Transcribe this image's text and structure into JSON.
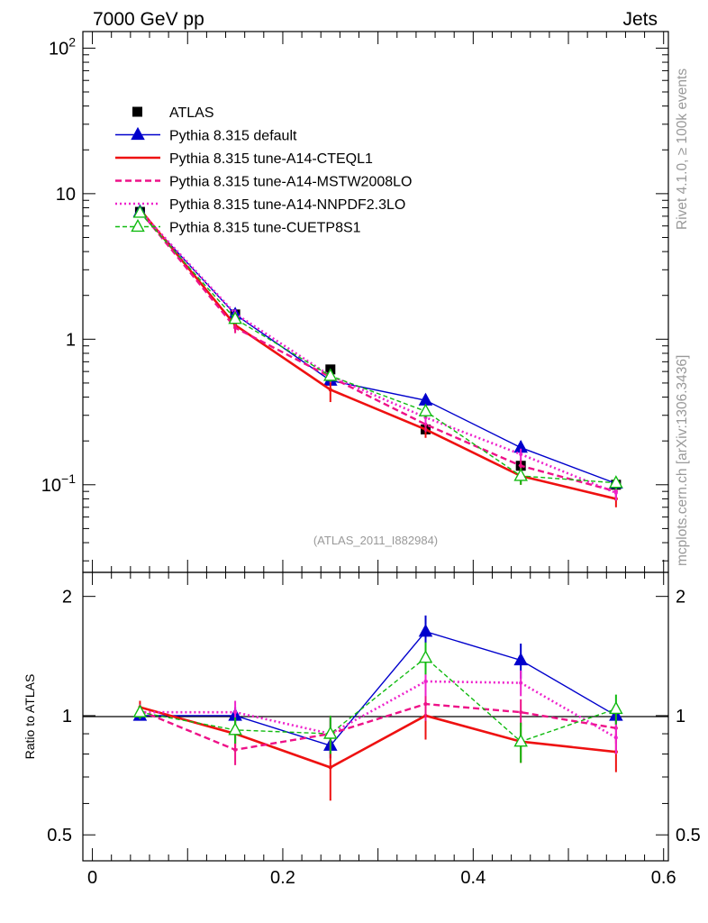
{
  "header": {
    "left": "7000 GeV pp",
    "right": "Jets"
  },
  "side_labels": {
    "rivet": "Rivet 4.1.0, ≥ 100k events",
    "mcplots": "mcplots.cern.ch [arXiv:1306.3436]"
  },
  "colors": {
    "atlas": "#000000",
    "default": "#0000cc",
    "cteql1": "#ee1111",
    "mstw": "#ee1188",
    "nnpdf": "#ee22cc",
    "cuetp": "#11bb11",
    "watermark": "#999999"
  },
  "chart_data": [
    {
      "type": "line",
      "panel": "main",
      "yscale": "log",
      "xlim": [
        -0.01,
        0.605
      ],
      "ylim": [
        0.025,
        130
      ],
      "annotation": "(ATLAS_2011_I882984)",
      "y_ticks": [
        {
          "value": 0.1,
          "base": "10",
          "exp": "−1"
        },
        {
          "value": 1,
          "label": "1"
        },
        {
          "value": 10,
          "label": "10"
        },
        {
          "value": 100,
          "base": "10",
          "exp": "2"
        }
      ],
      "legend_position": "top-left",
      "x": [
        0.05,
        0.15,
        0.25,
        0.35,
        0.45,
        0.55
      ],
      "series": [
        {
          "key": "atlas",
          "name": "ATLAS",
          "style": "data",
          "color": "#000000",
          "values": [
            7.5,
            1.48,
            0.62,
            0.24,
            0.135,
            0.1
          ]
        },
        {
          "key": "default",
          "name": "Pythia 8.315 default",
          "style": "solid-thin",
          "marker": "filled-triangle",
          "color": "#0000cc",
          "values": [
            7.5,
            1.48,
            0.52,
            0.38,
            0.18,
            0.102
          ],
          "errors": [
            0.2,
            0.08,
            0.04,
            0.04,
            0.02,
            0.01
          ]
        },
        {
          "key": "cteql1",
          "name": "Pythia 8.315 tune-A14-CTEQL1",
          "style": "solid-thick",
          "color": "#ee1111",
          "values": [
            7.8,
            1.25,
            0.45,
            0.24,
            0.115,
            0.08
          ],
          "errors": [
            0.3,
            0.1,
            0.08,
            0.03,
            0.015,
            0.01
          ]
        },
        {
          "key": "mstw",
          "name": "Pythia 8.315 tune-A14-MSTW2008LO",
          "style": "dashed",
          "color": "#ee1188",
          "values": [
            7.6,
            1.2,
            0.55,
            0.26,
            0.135,
            0.09
          ],
          "errors": [
            0.3,
            0.1,
            0.05,
            0.03,
            0.015,
            0.01
          ]
        },
        {
          "key": "nnpdf",
          "name": "Pythia 8.315 tune-A14-NNPDF2.3LO",
          "style": "dotted",
          "color": "#ee22cc",
          "values": [
            7.6,
            1.5,
            0.56,
            0.29,
            0.162,
            0.088
          ],
          "errors": [
            0.3,
            0.1,
            0.05,
            0.03,
            0.015,
            0.01
          ]
        },
        {
          "key": "cuetp",
          "name": "Pythia 8.315 tune-CUETP8S1",
          "style": "dashed-thin",
          "marker": "open-triangle",
          "color": "#11bb11",
          "values": [
            7.4,
            1.38,
            0.56,
            0.32,
            0.115,
            0.103
          ],
          "errors": [
            0.3,
            0.1,
            0.05,
            0.03,
            0.015,
            0.01
          ]
        }
      ]
    },
    {
      "type": "line",
      "panel": "ratio",
      "yscale": "log",
      "ylabel": "Ratio to ATLAS",
      "xlim": [
        -0.01,
        0.605
      ],
      "ylim": [
        0.43,
        2.3
      ],
      "y_ticks": [
        {
          "value": 0.5,
          "label": "0.5"
        },
        {
          "value": 1,
          "label": "1"
        },
        {
          "value": 2,
          "label": "2"
        }
      ],
      "x_ticks": [
        {
          "value": 0,
          "label": "0"
        },
        {
          "value": 0.2,
          "label": "0.2"
        },
        {
          "value": 0.4,
          "label": "0.4"
        },
        {
          "value": 0.6,
          "label": "0.6"
        }
      ],
      "x": [
        0.05,
        0.15,
        0.25,
        0.35,
        0.45,
        0.55
      ],
      "series": [
        {
          "key": "default",
          "values": [
            1.0,
            1.0,
            0.84,
            1.63,
            1.38,
            1.0
          ],
          "errors": [
            0.02,
            0.05,
            0.06,
            0.16,
            0.14,
            0.05
          ]
        },
        {
          "key": "cteql1",
          "values": [
            1.05,
            0.9,
            0.74,
            1.0,
            0.86,
            0.81
          ],
          "errors": [
            0.04,
            0.08,
            0.13,
            0.13,
            0.1,
            0.09
          ]
        },
        {
          "key": "mstw",
          "values": [
            1.03,
            0.82,
            0.9,
            1.07,
            1.02,
            0.93
          ],
          "errors": [
            0.04,
            0.07,
            0.1,
            0.1,
            0.08,
            0.08
          ]
        },
        {
          "key": "nnpdf",
          "values": [
            1.02,
            1.02,
            0.9,
            1.22,
            1.21,
            0.88
          ],
          "errors": [
            0.04,
            0.07,
            0.1,
            0.1,
            0.09,
            0.08
          ]
        },
        {
          "key": "cuetp",
          "values": [
            1.02,
            0.92,
            0.9,
            1.4,
            0.86,
            1.04
          ],
          "errors": [
            0.04,
            0.07,
            0.1,
            0.13,
            0.1,
            0.09
          ]
        }
      ]
    }
  ]
}
